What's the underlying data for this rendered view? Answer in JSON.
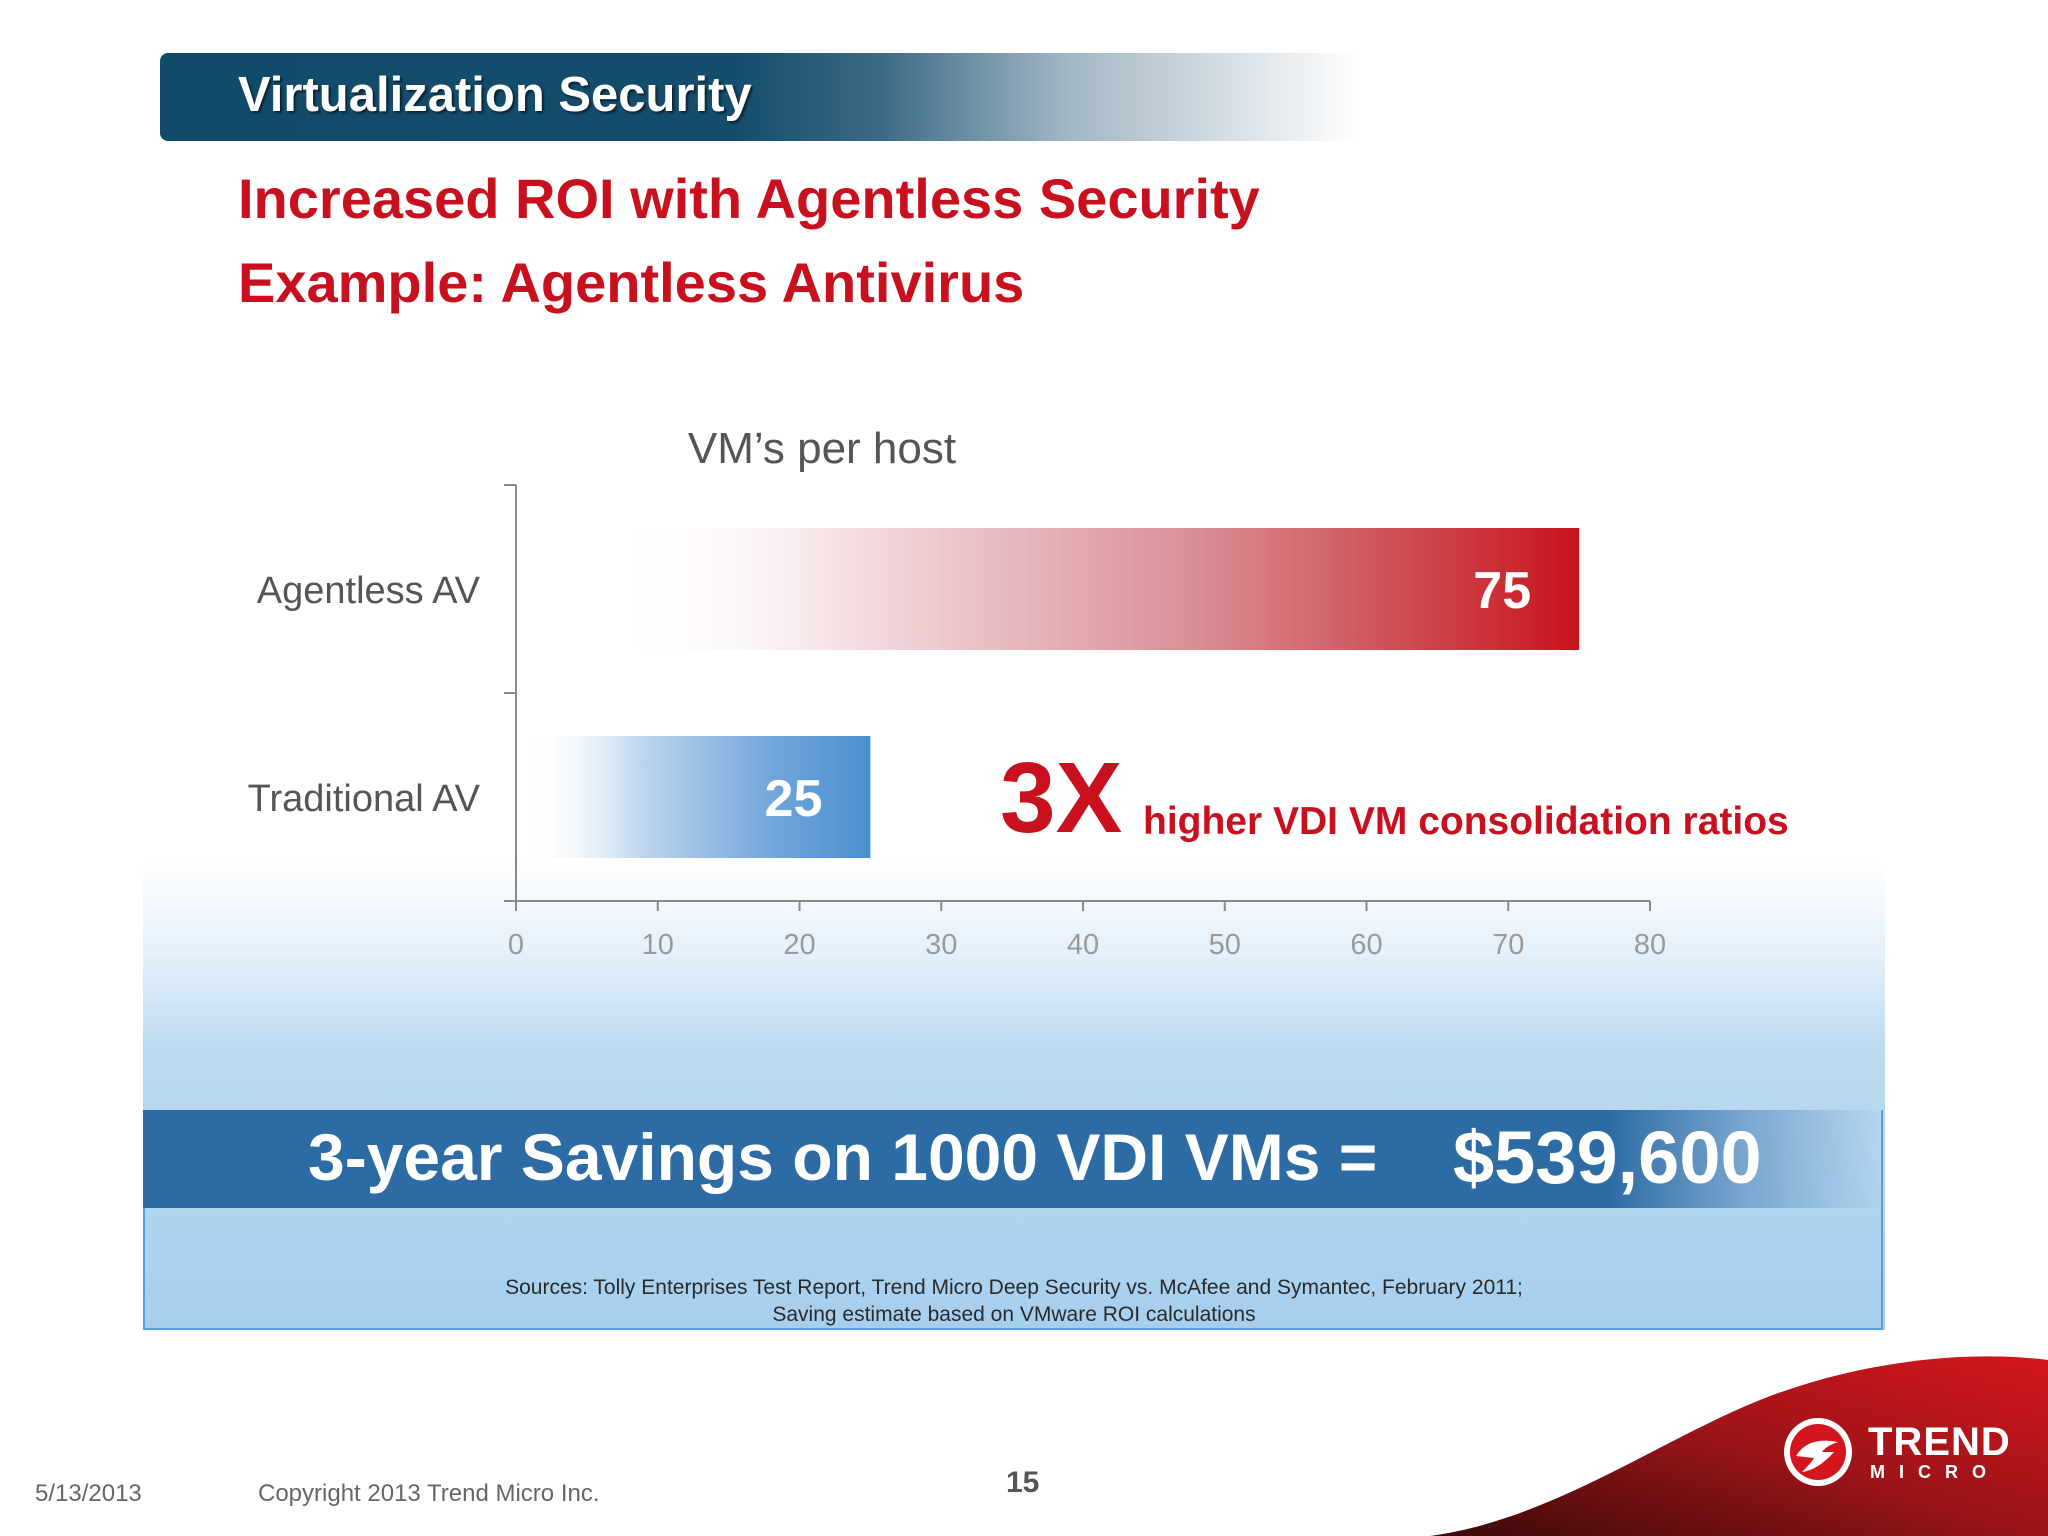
{
  "header": {
    "title": "Virtualization Security"
  },
  "subtitles": {
    "line1": "Increased ROI with Agentless Security",
    "line2": "Example: Agentless Antivirus"
  },
  "chart_data": {
    "type": "bar",
    "orientation": "horizontal",
    "title": "VM’s per host",
    "categories": [
      "Agentless AV",
      "Traditional AV"
    ],
    "values": [
      75,
      25
    ],
    "data_labels": [
      "75",
      "25"
    ],
    "xlim": [
      0,
      80
    ],
    "x_ticks": [
      0,
      10,
      20,
      30,
      40,
      50,
      60,
      70,
      80
    ],
    "grid": false,
    "legend": "none",
    "colors": {
      "Agentless AV": "#c8141c",
      "Traditional AV": "#4a8fd0"
    },
    "annotation": {
      "big": "3X",
      "text": "higher VDI VM consolidation ratios"
    }
  },
  "savings": {
    "label": "3-year Savings on 1000 VDI VMs =",
    "amount": "$539,600"
  },
  "sources": {
    "line1": "Sources: Tolly Enterprises Test Report, Trend Micro Deep Security vs. McAfee and Symantec, February 2011;",
    "line2": "Saving estimate based on VMware ROI calculations"
  },
  "footer": {
    "date": "5/13/2013",
    "copyright": "Copyright 2013 Trend Micro Inc.",
    "page_number": "15"
  },
  "logo": {
    "word1": "TREND",
    "word2": "MICRO"
  },
  "colors": {
    "header_bg": "#124a6a",
    "accent_red": "#c8101e",
    "savings_band": "#2c6ba3"
  }
}
